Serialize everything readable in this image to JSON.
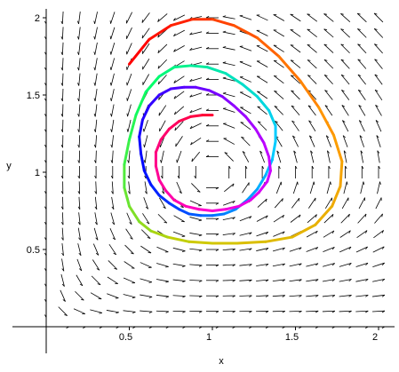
{
  "chart_data": {
    "type": "line",
    "title": "",
    "xlabel": "x",
    "ylabel": "y",
    "xlim": [
      -0.05,
      2.08
    ],
    "ylim": [
      -0.05,
      2.05
    ],
    "grid": false,
    "legend": "none",
    "x_ticks": [
      {
        "value": 0.5,
        "label": "0.5"
      },
      {
        "value": 1.0,
        "label": "1"
      },
      {
        "value": 1.5,
        "label": "1.5"
      },
      {
        "value": 2.0,
        "label": "2"
      }
    ],
    "y_ticks": [
      {
        "value": 0.5,
        "label": "0.5"
      },
      {
        "value": 1.0,
        "label": "1"
      },
      {
        "value": 1.5,
        "label": "1.5"
      },
      {
        "value": 2.0,
        "label": "2"
      }
    ],
    "direction_field": {
      "description": "predator-prey vector field with equilibrium at (1,1)",
      "x_range": [
        0.0,
        2.0
      ],
      "y_range": [
        0.0,
        2.0
      ],
      "grid_steps": 20,
      "color": "#000000"
    },
    "series": [
      {
        "color_gradient": [
          "#ff0000",
          "#ff9900",
          "#cccc00",
          "#00ff66",
          "#00ccff"
        ],
        "x": [
          0.5,
          0.62,
          0.75,
          0.88,
          1.0,
          1.13,
          1.27,
          1.4,
          1.53,
          1.64,
          1.73,
          1.78,
          1.77,
          1.72,
          1.62,
          1.48,
          1.32,
          1.15,
          1.0,
          0.86,
          0.73,
          0.63,
          0.56,
          0.5,
          0.47,
          0.47,
          0.5,
          0.54,
          0.6,
          0.68,
          0.77,
          0.87,
          0.97,
          1.08,
          1.18,
          1.27,
          1.34,
          1.38,
          1.38
        ],
        "y": [
          1.7,
          1.86,
          1.95,
          1.99,
          1.99,
          1.95,
          1.87,
          1.75,
          1.59,
          1.42,
          1.24,
          1.07,
          0.91,
          0.78,
          0.66,
          0.58,
          0.55,
          0.54,
          0.54,
          0.55,
          0.58,
          0.62,
          0.68,
          0.78,
          0.9,
          1.05,
          1.21,
          1.37,
          1.52,
          1.62,
          1.68,
          1.69,
          1.68,
          1.64,
          1.57,
          1.49,
          1.4,
          1.3,
          1.2
        ]
      },
      {
        "color_gradient": [
          "#00ccff",
          "#0066ff",
          "#0000ff",
          "#6600ff",
          "#cc00ff"
        ],
        "x": [
          1.38,
          1.36,
          1.32,
          1.27,
          1.21,
          1.14,
          1.07,
          1.0,
          0.93,
          0.86,
          0.8,
          0.74,
          0.68,
          0.63,
          0.59,
          0.57,
          0.56,
          0.58,
          0.62,
          0.68,
          0.75,
          0.83,
          0.9,
          0.98,
          1.06,
          1.13,
          1.2,
          1.26,
          1.31,
          1.34,
          1.35
        ],
        "y": [
          1.2,
          1.08,
          0.98,
          0.89,
          0.82,
          0.76,
          0.73,
          0.72,
          0.72,
          0.73,
          0.76,
          0.8,
          0.85,
          0.92,
          1.01,
          1.12,
          1.23,
          1.34,
          1.43,
          1.5,
          1.54,
          1.55,
          1.55,
          1.53,
          1.49,
          1.43,
          1.36,
          1.28,
          1.19,
          1.1,
          1.01
        ]
      },
      {
        "color_gradient": [
          "#cc00ff",
          "#ff00cc",
          "#ff0088",
          "#ff0033"
        ],
        "x": [
          1.35,
          1.33,
          1.28,
          1.23,
          1.16,
          1.08,
          1.0,
          0.92,
          0.84,
          0.77,
          0.72,
          0.68,
          0.66,
          0.66,
          0.69,
          0.74,
          0.8,
          0.87,
          0.94,
          1.0
        ],
        "y": [
          1.01,
          0.94,
          0.87,
          0.82,
          0.78,
          0.76,
          0.75,
          0.76,
          0.78,
          0.82,
          0.88,
          0.95,
          1.04,
          1.13,
          1.21,
          1.28,
          1.33,
          1.36,
          1.37,
          1.37
        ]
      }
    ]
  }
}
